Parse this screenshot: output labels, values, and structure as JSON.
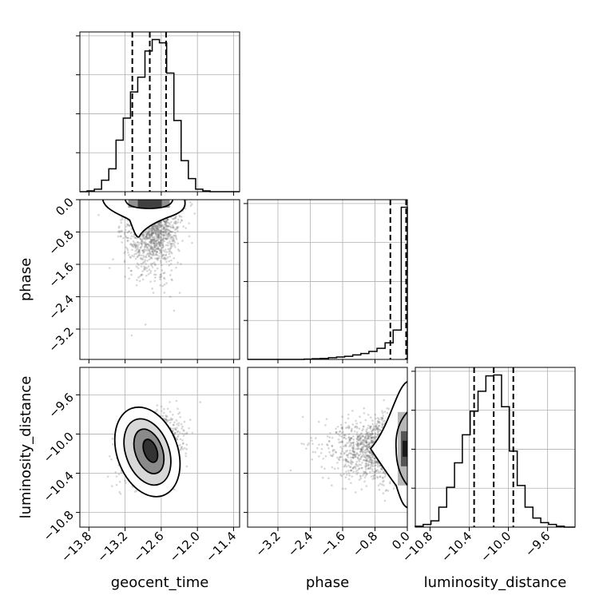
{
  "chart_data": {
    "type": "corner",
    "grid": true,
    "parameters": [
      {
        "name": "geocent_time",
        "label": "geocent_time",
        "range": [
          -13.95,
          -11.3
        ],
        "ticks": [
          -13.8,
          -13.2,
          -12.6,
          -12.0,
          -11.4
        ],
        "tick_labels": [
          "−13.8",
          "−13.2",
          "−12.6",
          "−12.0",
          "−11.4"
        ],
        "quantiles": [
          -13.08,
          -12.79,
          -12.52
        ],
        "histogram": {
          "bin_edges": [
            -13.95,
            -13.83,
            -13.71,
            -13.59,
            -13.47,
            -13.35,
            -13.23,
            -13.11,
            -12.99,
            -12.87,
            -12.75,
            -12.63,
            -12.51,
            -12.39,
            -12.27,
            -12.15,
            -12.03,
            -11.91,
            -11.79,
            -11.67,
            -11.55,
            -11.43,
            -11.3
          ],
          "counts": [
            0,
            1,
            3,
            14,
            28,
            63,
            90,
            122,
            140,
            172,
            186,
            182,
            145,
            87,
            38,
            16,
            3,
            1,
            0,
            0,
            0,
            0
          ]
        }
      },
      {
        "name": "phase",
        "label": "phase",
        "range": [
          -3.95,
          0.0
        ],
        "ticks": [
          -3.2,
          -2.4,
          -1.6,
          -0.8,
          0.0
        ],
        "tick_labels": [
          "−3.2",
          "−2.4",
          "−1.6",
          "−0.8",
          "0.0"
        ],
        "quantiles": [
          -0.42,
          -0.03,
          0.0
        ],
        "histogram": {
          "bin_edges": [
            -3.95,
            -3.75,
            -3.55,
            -3.35,
            -3.15,
            -2.95,
            -2.75,
            -2.55,
            -2.35,
            -2.15,
            -1.95,
            -1.75,
            -1.55,
            -1.35,
            -1.15,
            -0.95,
            -0.75,
            -0.55,
            -0.35,
            -0.15,
            0.0
          ],
          "counts": [
            0,
            0,
            0,
            0,
            0,
            0,
            0,
            1,
            2,
            3,
            5,
            7,
            9,
            13,
            17,
            23,
            32,
            48,
            85,
            440
          ]
        }
      },
      {
        "name": "luminosity_distance",
        "label": "luminosity_distance",
        "range": [
          -10.95,
          -9.32
        ],
        "ticks": [
          -10.8,
          -10.4,
          -10.0,
          -9.6
        ],
        "tick_labels": [
          "−10.8",
          "−10.4",
          "−10.0",
          "−9.6"
        ],
        "quantiles": [
          -10.35,
          -10.15,
          -9.95
        ],
        "histogram": {
          "bin_edges": [
            -10.95,
            -10.87,
            -10.79,
            -10.71,
            -10.63,
            -10.55,
            -10.47,
            -10.39,
            -10.31,
            -10.23,
            -10.15,
            -10.07,
            -9.99,
            -9.91,
            -9.83,
            -9.75,
            -9.67,
            -9.59,
            -9.51,
            -9.43,
            -9.32
          ],
          "counts": [
            1,
            3,
            7,
            22,
            44,
            71,
            102,
            128,
            150,
            167,
            168,
            133,
            84,
            46,
            22,
            10,
            5,
            3,
            1,
            0
          ]
        }
      }
    ],
    "panels_2d": [
      {
        "x": "geocent_time",
        "y": "phase",
        "samples": {
          "x_mean": -12.75,
          "x_sd": 0.22,
          "y_dist": "half-normal",
          "y_sd": 0.8
        }
      },
      {
        "x": "geocent_time",
        "y": "luminosity_distance",
        "samples": {
          "x_mean": -12.75,
          "x_sd": 0.22,
          "y_mean": -10.15,
          "y_sd": 0.15,
          "correlation": 0.3
        }
      },
      {
        "x": "phase",
        "y": "luminosity_distance",
        "samples": {
          "x_dist": "half-normal",
          "x_sd": 0.8,
          "y_mean": -10.15,
          "y_sd": 0.15
        }
      }
    ],
    "axis_labels": {
      "x": [
        "geocent_time",
        "phase",
        "luminosity_distance"
      ],
      "y": [
        "phase",
        "luminosity_distance"
      ]
    }
  }
}
